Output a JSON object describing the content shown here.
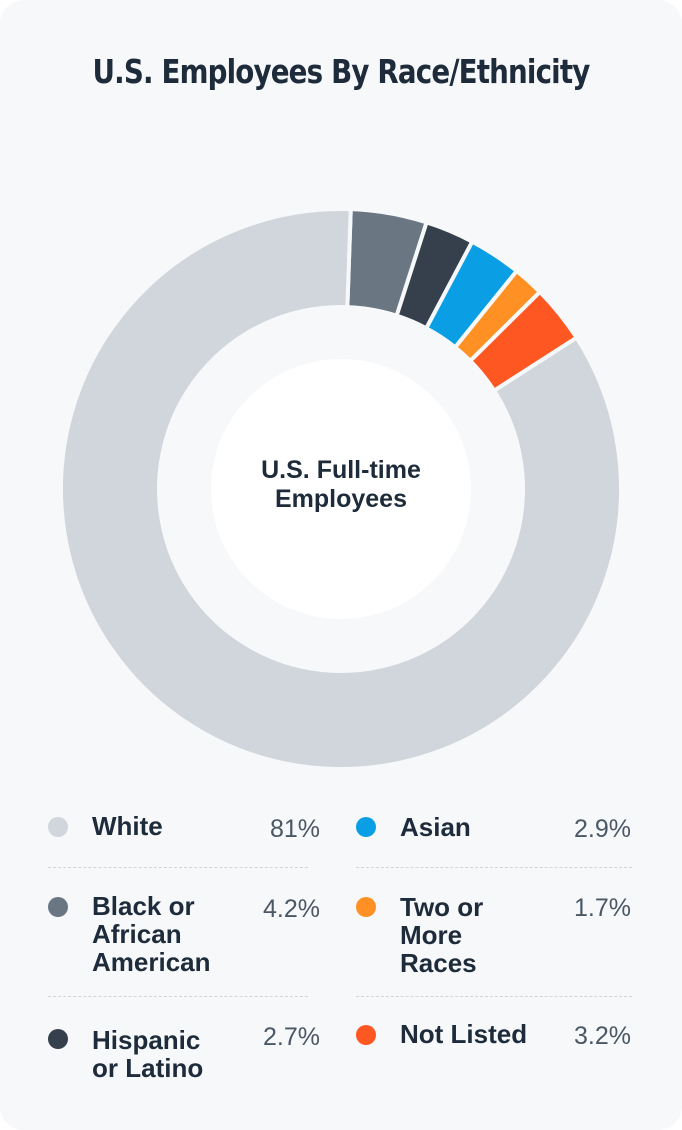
{
  "chart_data": {
    "type": "pie",
    "title": "U.S. Employees By Race/Ethnicity",
    "center_label": "U.S. Full-time Employees",
    "start_segment": "Black or African American",
    "slices": [
      {
        "label": "White",
        "value": 81,
        "display": "81%",
        "color": "#d0d6dc",
        "dot": "#d0d6dc"
      },
      {
        "label": "Black or African American",
        "value": 4.2,
        "display": "4.2%",
        "color": "#6b7683",
        "dot": "#6b7683"
      },
      {
        "label": "Hispanic or Latino",
        "value": 2.7,
        "display": "2.7%",
        "color": "#35404c",
        "dot": "#35404c"
      },
      {
        "label": "Asian",
        "value": 2.9,
        "display": "2.9%",
        "color": "#0a9fe4",
        "dot": "#0a9fe4"
      },
      {
        "label": "Two or More Races",
        "value": 1.7,
        "display": "1.7%",
        "color": "#ff9124",
        "dot": "#ff9124"
      },
      {
        "label": "Not Listed",
        "value": 3.2,
        "display": "3.2%",
        "color": "#ff5722",
        "dot": "#ff5722"
      }
    ],
    "legend_columns": [
      [
        "White",
        "Black or African American",
        "Hispanic or Latino"
      ],
      [
        "Asian",
        "Two or More Races",
        "Not Listed"
      ]
    ]
  },
  "legend_text": {
    "white": [
      "White"
    ],
    "black": [
      "Black or",
      "African",
      "American"
    ],
    "hispanic": [
      "Hispanic",
      "or Latino"
    ],
    "asian": [
      "Asian"
    ],
    "two_or_more": [
      "Two or",
      "More",
      "Races"
    ],
    "not_listed": [
      "Not Listed"
    ]
  },
  "center_text": [
    "U.S. Full-time",
    "Employees"
  ]
}
